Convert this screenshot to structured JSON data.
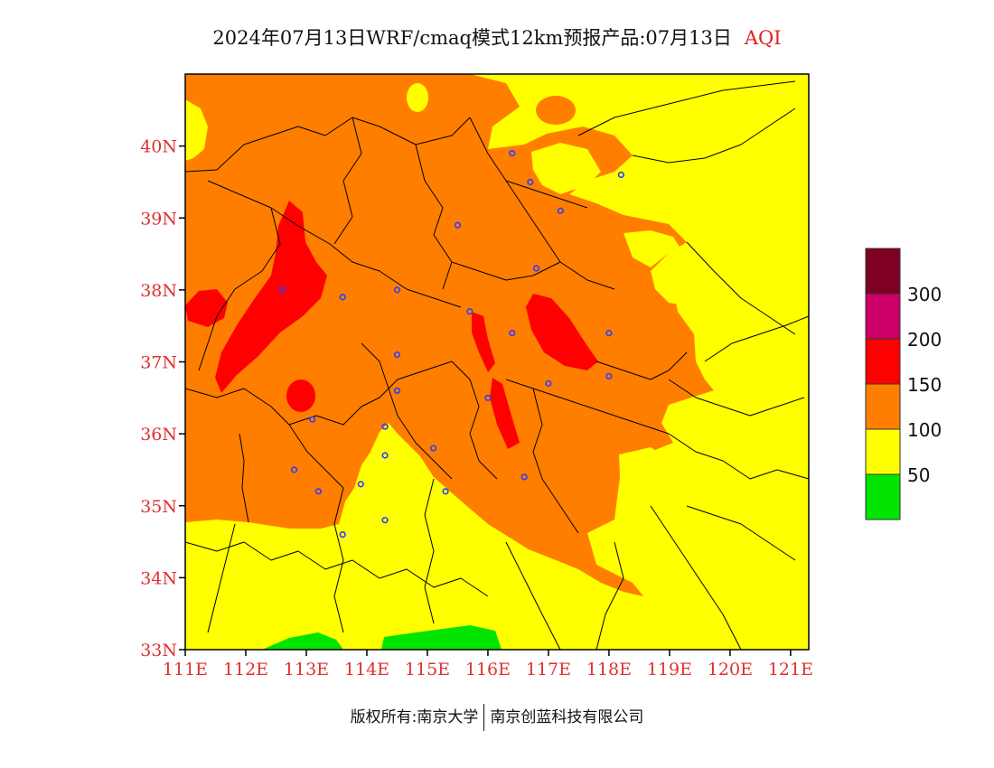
{
  "title": {
    "text": "2024年07月13日WRF/cmaq模式12km预报产品:07月13日",
    "variable": "AQI"
  },
  "footer": {
    "copyright": "版权所有:南京大学",
    "company": "南京创蓝科技有限公司"
  },
  "map": {
    "lon_range": [
      111,
      121.3
    ],
    "lat_range": [
      33,
      41
    ],
    "lat_ticks": [
      "33N",
      "34N",
      "35N",
      "36N",
      "37N",
      "38N",
      "39N",
      "40N"
    ],
    "lon_ticks": [
      "111E",
      "112E",
      "113E",
      "114E",
      "115E",
      "116E",
      "117E",
      "118E",
      "119E",
      "120E",
      "121E"
    ],
    "colors": {
      "good": "#00e400",
      "moderate": "#ffff00",
      "usg": "#ff7e00",
      "unhealthy": "#ff0000",
      "very_unhealthy": "#cc0066",
      "hazardous": "#7e0023"
    }
  },
  "legend": {
    "labels": [
      "50",
      "100",
      "150",
      "200",
      "300"
    ],
    "colors": [
      "#00e400",
      "#ffff00",
      "#ff7e00",
      "#ff0000",
      "#cc0066",
      "#7e0023"
    ]
  },
  "stations": [
    [
      116.4,
      39.9
    ],
    [
      116.7,
      39.5
    ],
    [
      118.2,
      39.6
    ],
    [
      117.2,
      39.1
    ],
    [
      115.5,
      38.9
    ],
    [
      116.8,
      38.3
    ],
    [
      112.6,
      38.0
    ],
    [
      113.6,
      37.9
    ],
    [
      114.5,
      38.0
    ],
    [
      115.7,
      37.7
    ],
    [
      116.4,
      37.4
    ],
    [
      118.0,
      37.4
    ],
    [
      114.5,
      37.1
    ],
    [
      114.5,
      36.6
    ],
    [
      117.0,
      36.7
    ],
    [
      118.0,
      36.8
    ],
    [
      116.0,
      36.5
    ],
    [
      113.1,
      36.2
    ],
    [
      114.3,
      36.1
    ],
    [
      114.3,
      35.7
    ],
    [
      115.1,
      35.8
    ],
    [
      112.8,
      35.5
    ],
    [
      113.2,
      35.2
    ],
    [
      113.9,
      35.3
    ],
    [
      115.3,
      35.2
    ],
    [
      116.6,
      35.4
    ],
    [
      114.3,
      34.8
    ],
    [
      113.6,
      34.6
    ]
  ]
}
